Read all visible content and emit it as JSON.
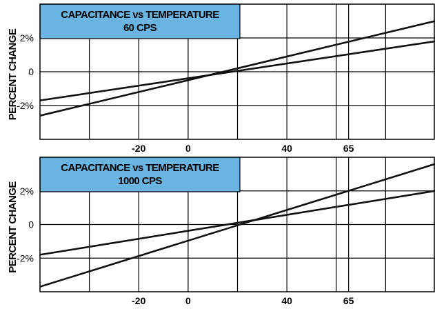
{
  "charts": [
    {
      "title_line1": "CAPACITANCE vs TEMPERATURE",
      "title_line2": "60 CPS",
      "ylabel": "PERCENT CHANGE",
      "title_fill": "#6ab4e1"
    },
    {
      "title_line1": "CAPACITANCE vs TEMPERATURE",
      "title_line2": "1000 CPS",
      "ylabel": "PERCENT CHANGE",
      "title_fill": "#6ab4e1"
    }
  ],
  "chart_data": [
    {
      "type": "line",
      "title": "CAPACITANCE vs TEMPERATURE 60 CPS",
      "xlabel": "",
      "ylabel": "PERCENT CHANGE",
      "xlim": [
        -60,
        100
      ],
      "ylim": [
        -4,
        4
      ],
      "x_ticks": [
        {
          "value": -20,
          "label": "-20"
        },
        {
          "value": 0,
          "label": "0"
        },
        {
          "value": 40,
          "label": "40"
        },
        {
          "value": 65,
          "label": "65"
        }
      ],
      "x_gridlines": [
        -40,
        -20,
        0,
        20,
        40,
        60,
        65,
        80
      ],
      "y_ticks": [
        {
          "value": 2,
          "label": "2%"
        },
        {
          "value": 0,
          "label": "0"
        },
        {
          "value": -2,
          "label": "-2%"
        }
      ],
      "y_gridlines": [
        -2,
        0,
        2
      ],
      "grid": true,
      "series": [
        {
          "x": [
            -60,
            100
          ],
          "y": [
            -1.7,
            1.8
          ]
        },
        {
          "x": [
            -60,
            100
          ],
          "y": [
            -2.6,
            3.0
          ]
        }
      ]
    },
    {
      "type": "line",
      "title": "CAPACITANCE vs TEMPERATURE 1000 CPS",
      "xlabel": "",
      "ylabel": "PERCENT CHANGE",
      "xlim": [
        -60,
        100
      ],
      "ylim": [
        -4,
        4
      ],
      "x_ticks": [
        {
          "value": -20,
          "label": "-20"
        },
        {
          "value": 0,
          "label": "0"
        },
        {
          "value": 40,
          "label": "40"
        },
        {
          "value": 65,
          "label": "65"
        }
      ],
      "x_gridlines": [
        -40,
        -20,
        0,
        20,
        40,
        60,
        65,
        80
      ],
      "y_ticks": [
        {
          "value": 2,
          "label": "2%"
        },
        {
          "value": 0,
          "label": "0"
        },
        {
          "value": -2,
          "label": "-2%"
        }
      ],
      "y_gridlines": [
        -2,
        0,
        2
      ],
      "grid": true,
      "series": [
        {
          "x": [
            -60,
            100
          ],
          "y": [
            -1.8,
            2.0
          ]
        },
        {
          "x": [
            -60,
            100
          ],
          "y": [
            -3.7,
            3.6
          ]
        }
      ]
    }
  ]
}
